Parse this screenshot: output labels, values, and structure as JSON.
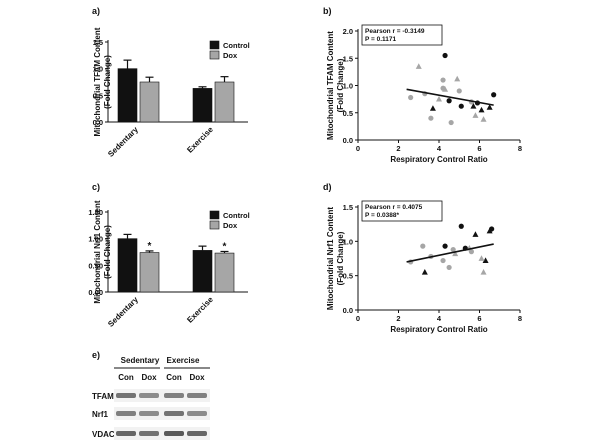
{
  "colors": {
    "control": "#111111",
    "dox": "#a6a6a6",
    "axis": "#111111",
    "blot_bg": "#f2f2f2"
  },
  "chart_data": [
    {
      "panel": "a)",
      "type": "bar",
      "ylabel_line1": "Mitochondrial TFAM Content",
      "ylabel_line2": "(Fold Change)",
      "categories": [
        "Sedentary",
        "Exercise"
      ],
      "series": [
        {
          "name": "Control",
          "values": [
            1.0,
            0.63
          ],
          "errors": [
            0.16,
            0.03
          ]
        },
        {
          "name": "Dox",
          "values": [
            0.75,
            0.75
          ],
          "errors": [
            0.09,
            0.1
          ]
        }
      ],
      "significance": [],
      "ylim": [
        0,
        1.5
      ],
      "yticks": [
        "0.0",
        "0.5",
        "1.0",
        "1.5"
      ],
      "legend_loc": "top-right"
    },
    {
      "panel": "b)",
      "type": "scatter",
      "ylabel_line1": "Mitochondrial TFAM Content",
      "ylabel_line2": "(Fold Change)",
      "xlabel": "Respiratory Control Ratio",
      "xlim": [
        0,
        8
      ],
      "ylim": [
        0,
        2.0
      ],
      "xticks": [
        "0",
        "2",
        "4",
        "6",
        "8"
      ],
      "yticks": [
        "0.0",
        "0.5",
        "1.0",
        "1.5",
        "2.0"
      ],
      "annotation": [
        "Pearson r = -0.3149",
        "P = 0.1171"
      ],
      "regression": {
        "x": [
          2.4,
          6.7
        ],
        "y": [
          0.93,
          0.64
        ]
      },
      "points": [
        {
          "x": 4.3,
          "y": 1.55,
          "g": "sed_con"
        },
        {
          "x": 5.1,
          "y": 0.62,
          "g": "sed_con"
        },
        {
          "x": 6.7,
          "y": 0.83,
          "g": "sed_con"
        },
        {
          "x": 5.9,
          "y": 0.68,
          "g": "sed_con"
        },
        {
          "x": 4.5,
          "y": 0.72,
          "g": "sed_con"
        },
        {
          "x": 2.6,
          "y": 0.78,
          "g": "sed_dox"
        },
        {
          "x": 3.3,
          "y": 0.85,
          "g": "sed_dox"
        },
        {
          "x": 3.6,
          "y": 0.4,
          "g": "sed_dox"
        },
        {
          "x": 4.2,
          "y": 1.1,
          "g": "sed_dox"
        },
        {
          "x": 4.6,
          "y": 0.32,
          "g": "sed_dox"
        },
        {
          "x": 5.0,
          "y": 0.9,
          "g": "sed_dox"
        },
        {
          "x": 5.6,
          "y": 0.7,
          "g": "sed_dox"
        },
        {
          "x": 4.2,
          "y": 0.95,
          "g": "sed_dox"
        },
        {
          "x": 3.7,
          "y": 0.58,
          "g": "ex_con"
        },
        {
          "x": 5.7,
          "y": 0.62,
          "g": "ex_con"
        },
        {
          "x": 6.1,
          "y": 0.55,
          "g": "ex_con"
        },
        {
          "x": 6.5,
          "y": 0.6,
          "g": "ex_con"
        },
        {
          "x": 3.0,
          "y": 1.35,
          "g": "ex_dox"
        },
        {
          "x": 4.9,
          "y": 1.12,
          "g": "ex_dox"
        },
        {
          "x": 4.3,
          "y": 0.93,
          "g": "ex_dox"
        },
        {
          "x": 5.8,
          "y": 0.45,
          "g": "ex_dox"
        },
        {
          "x": 6.2,
          "y": 0.38,
          "g": "ex_dox"
        },
        {
          "x": 4.0,
          "y": 0.75,
          "g": "ex_dox"
        }
      ]
    },
    {
      "panel": "c)",
      "type": "bar",
      "ylabel_line1": "Mitochondrial Nrf1 Content",
      "ylabel_line2": "(Fold Change)",
      "categories": [
        "Sedentary",
        "Exercise"
      ],
      "series": [
        {
          "name": "Control",
          "values": [
            1.0,
            0.78
          ],
          "errors": [
            0.08,
            0.08
          ]
        },
        {
          "name": "Dox",
          "values": [
            0.74,
            0.73
          ],
          "errors": [
            0.03,
            0.03
          ]
        }
      ],
      "significance": [
        {
          "category": 0,
          "series": 1,
          "label": "*"
        },
        {
          "category": 1,
          "series": 1,
          "label": "*"
        }
      ],
      "ylim": [
        0,
        1.5
      ],
      "yticks": [
        "0.00",
        "0.50",
        "1.00",
        "1.50"
      ],
      "legend_loc": "top-right"
    },
    {
      "panel": "d)",
      "type": "scatter",
      "ylabel_line1": "Mitochondrial Nrf1 Content",
      "ylabel_line2": "(Fold Change)",
      "xlabel": "Respiratory Control Ratio",
      "xlim": [
        0,
        8
      ],
      "ylim": [
        0,
        1.5
      ],
      "xticks": [
        "0",
        "2",
        "4",
        "6",
        "8"
      ],
      "yticks": [
        "0.0",
        "0.5",
        "1.0",
        "1.5"
      ],
      "annotation": [
        "Pearson r = 0.4075",
        "P = 0.0388*"
      ],
      "regression": {
        "x": [
          2.4,
          6.7
        ],
        "y": [
          0.7,
          0.96
        ]
      },
      "points": [
        {
          "x": 5.1,
          "y": 1.22,
          "g": "sed_con"
        },
        {
          "x": 6.6,
          "y": 1.18,
          "g": "sed_con"
        },
        {
          "x": 5.3,
          "y": 0.9,
          "g": "sed_con"
        },
        {
          "x": 4.3,
          "y": 0.93,
          "g": "sed_con"
        },
        {
          "x": 3.2,
          "y": 0.93,
          "g": "sed_dox"
        },
        {
          "x": 3.6,
          "y": 0.78,
          "g": "sed_dox"
        },
        {
          "x": 4.2,
          "y": 0.72,
          "g": "sed_dox"
        },
        {
          "x": 4.7,
          "y": 0.88,
          "g": "sed_dox"
        },
        {
          "x": 5.6,
          "y": 0.85,
          "g": "sed_dox"
        },
        {
          "x": 2.6,
          "y": 0.7,
          "g": "sed_dox"
        },
        {
          "x": 4.5,
          "y": 0.62,
          "g": "sed_dox"
        },
        {
          "x": 3.3,
          "y": 0.55,
          "g": "ex_con"
        },
        {
          "x": 5.8,
          "y": 1.1,
          "g": "ex_con"
        },
        {
          "x": 6.5,
          "y": 1.15,
          "g": "ex_con"
        },
        {
          "x": 6.3,
          "y": 0.72,
          "g": "ex_con"
        },
        {
          "x": 5.5,
          "y": 0.9,
          "g": "ex_dox"
        },
        {
          "x": 6.1,
          "y": 0.75,
          "g": "ex_dox"
        },
        {
          "x": 6.2,
          "y": 0.55,
          "g": "ex_dox"
        },
        {
          "x": 4.8,
          "y": 0.82,
          "g": "ex_dox"
        }
      ]
    }
  ],
  "blot": {
    "panel": "e)",
    "groups": [
      "Sedentary",
      "Exercise"
    ],
    "lanes": [
      "Con",
      "Dox",
      "Con",
      "Dox"
    ],
    "rows": [
      "TFAM",
      "Nrf1",
      "VDAC"
    ]
  }
}
